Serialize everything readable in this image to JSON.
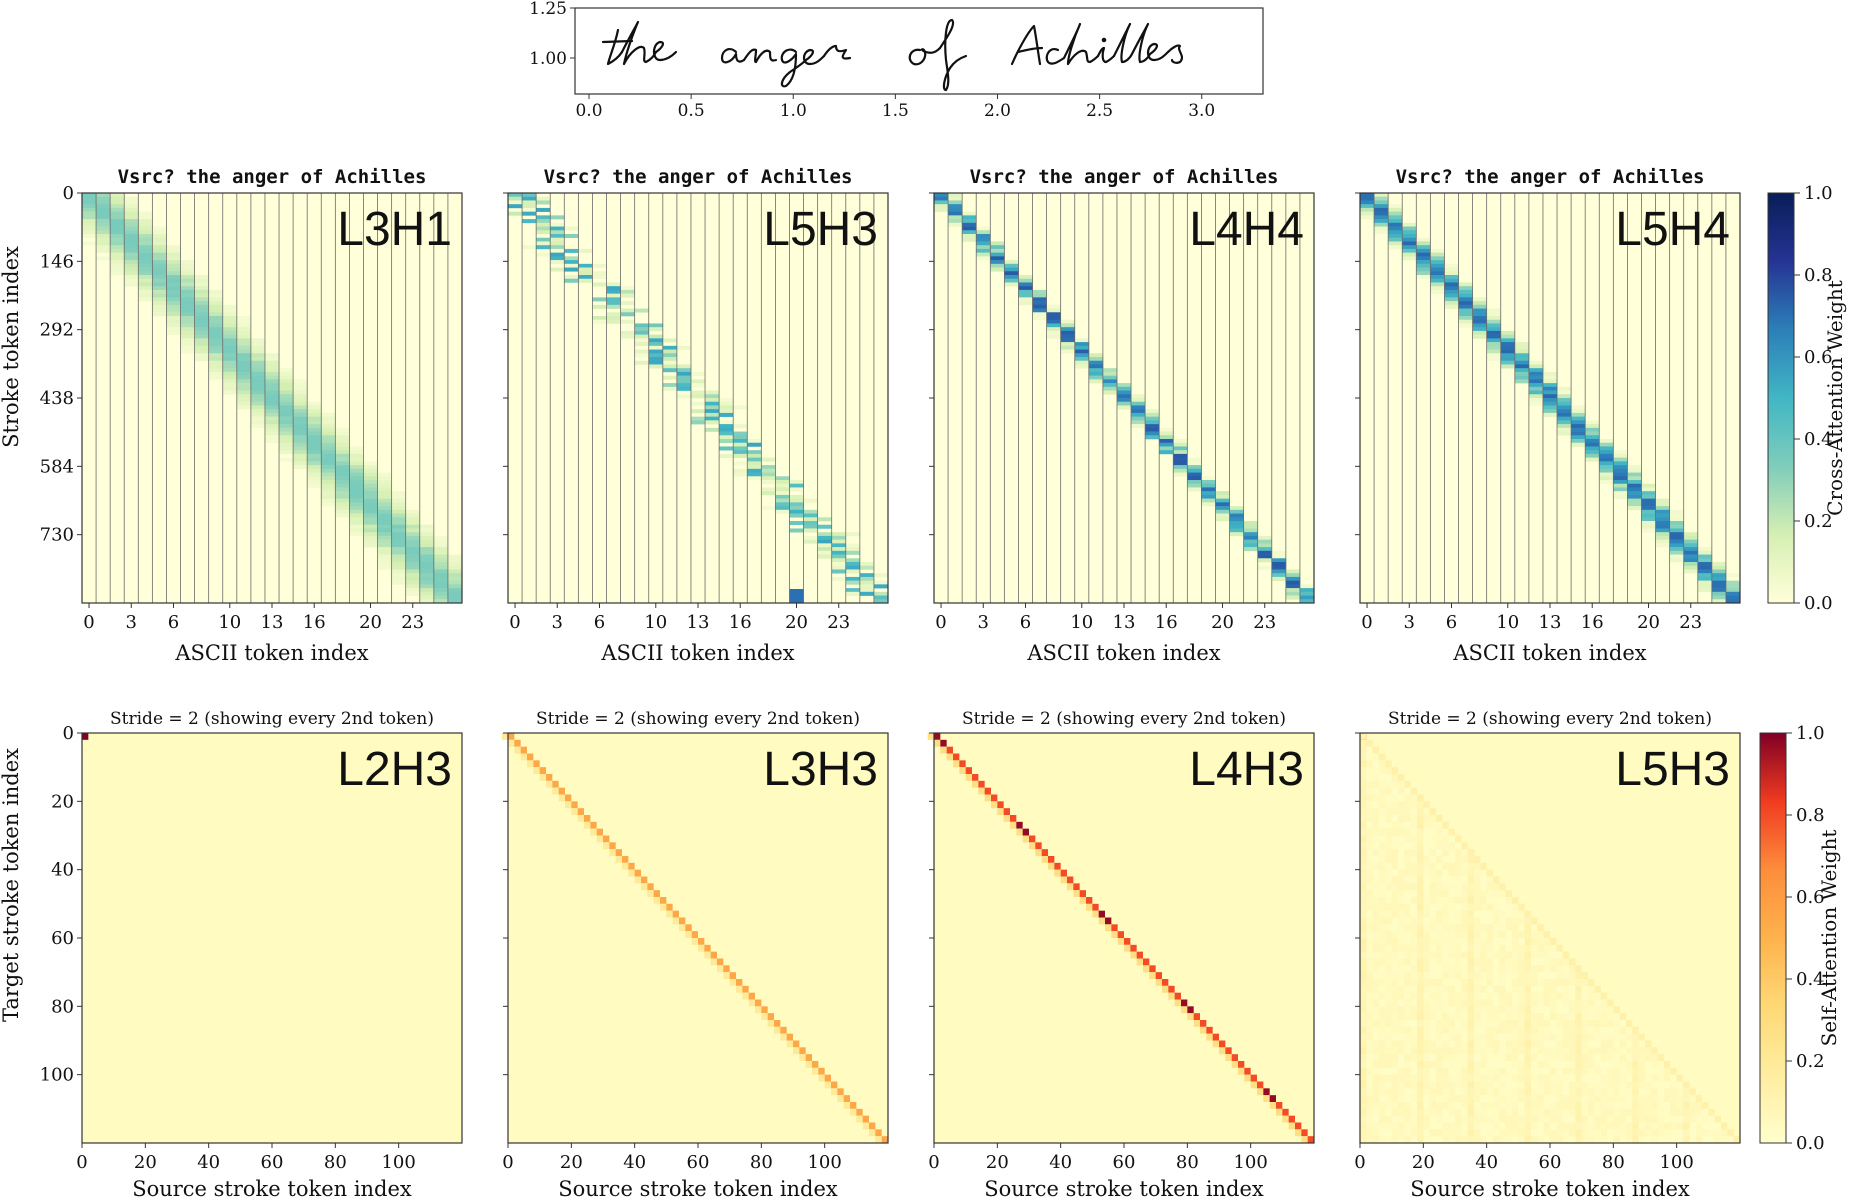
{
  "colors": {
    "cross_cmap": [
      "#ffffd9",
      "#d5efb3",
      "#7fcdbb",
      "#41b6c4",
      "#2c7fb8",
      "#253494",
      "#081d58"
    ],
    "self_cmap": [
      "#ffffcc",
      "#ffeda0",
      "#fed976",
      "#feb24c",
      "#fd8d3c",
      "#f03b20",
      "#800026"
    ]
  },
  "chart_data": [
    {
      "type": "line",
      "role": "handwriting-sample",
      "handwriting_text": "the anger of Achilles",
      "x_ticks": [
        "0.0",
        "0.5",
        "1.0",
        "1.5",
        "2.0",
        "2.5",
        "3.0"
      ],
      "y_ticks": [
        "1.25",
        "1.00"
      ],
      "xlim": [
        0,
        3.3
      ],
      "ylim": [
        0.82,
        1.25
      ]
    },
    {
      "type": "heatmap",
      "role": "cross-attention",
      "title": "Vsrc? the anger of Achilles",
      "xlabel": "ASCII token index",
      "ylabel": "Stroke token index",
      "x_ticks": [
        "0",
        "3",
        "6",
        "10",
        "13",
        "16",
        "20",
        "23"
      ],
      "y_ticks": [
        "0",
        "146",
        "292",
        "438",
        "584",
        "730"
      ],
      "n_ascii_tokens": 27,
      "n_stroke_tokens": 876,
      "panels": [
        {
          "name": "L3H1",
          "peak": 0.35,
          "spread": 1.4,
          "mode": "diffuse",
          "hotspot": false
        },
        {
          "name": "L5H3",
          "peak": 0.55,
          "spread": 0.6,
          "mode": "scattered",
          "hotspot": true
        },
        {
          "name": "L4H4",
          "peak": 0.75,
          "spread": 0.4,
          "mode": "sharp",
          "hotspot": false
        },
        {
          "name": "L5H4",
          "peak": 0.72,
          "spread": 0.6,
          "mode": "sharp",
          "hotspot": false
        }
      ],
      "colorbar": {
        "label": "Cross-Attention Weight",
        "ticks": [
          "0.0",
          "0.2",
          "0.4",
          "0.6",
          "0.8",
          "1.0"
        ],
        "range": [
          0,
          1
        ]
      }
    },
    {
      "type": "heatmap",
      "role": "self-attention",
      "title": "Stride = 2 (showing every 2nd token)",
      "xlabel": "Source stroke token index",
      "ylabel": "Target stroke token index",
      "x_ticks": [
        "0",
        "20",
        "40",
        "60",
        "80",
        "100"
      ],
      "y_ticks": [
        "0",
        "20",
        "40",
        "60",
        "80",
        "100"
      ],
      "n_tokens": 120,
      "panels": [
        {
          "name": "L2H3",
          "mode": "sink",
          "diag_strength": 0.0
        },
        {
          "name": "L3H3",
          "mode": "diagonal",
          "diag_strength": 0.55
        },
        {
          "name": "L4H3",
          "mode": "diagonal-blocks",
          "diag_strength": 0.8
        },
        {
          "name": "L5H3",
          "mode": "broad-causal",
          "diag_strength": 0.08
        }
      ],
      "colorbar": {
        "label": "Self-Attention Weight",
        "ticks": [
          "0.0",
          "0.2",
          "0.4",
          "0.6",
          "0.8",
          "1.0"
        ],
        "range": [
          0,
          1
        ]
      }
    }
  ]
}
